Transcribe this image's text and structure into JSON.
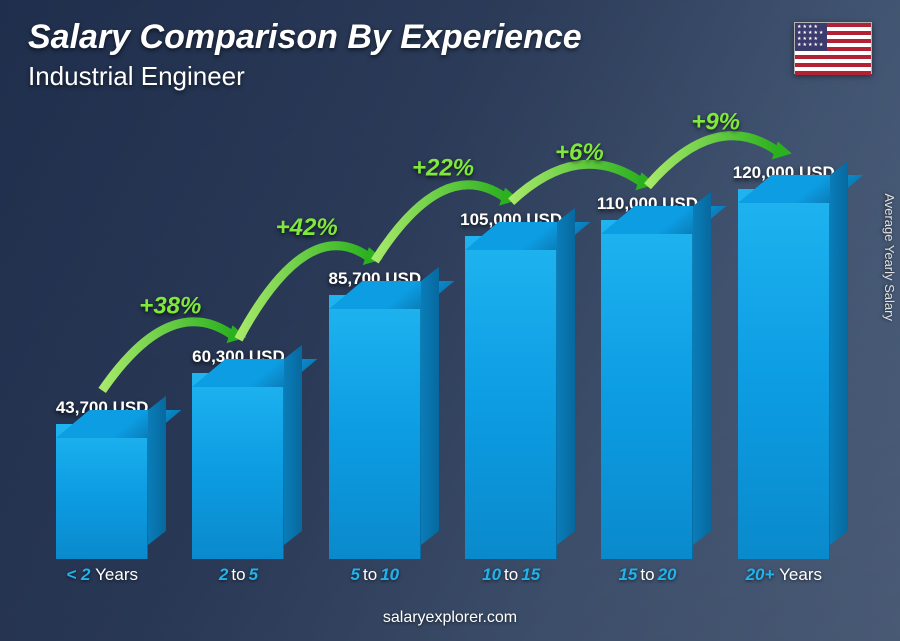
{
  "header": {
    "title": "Salary Comparison By Experience",
    "subtitle": "Industrial Engineer"
  },
  "flag": {
    "country": "United States"
  },
  "yaxis_label": "Average Yearly Salary",
  "chart": {
    "type": "bar",
    "bar_color_top": "#0d9de3",
    "bar_color_front": "#1fb4f0",
    "bar_color_side": "#07689e",
    "value_fontsize": 17,
    "max_value": 120000,
    "bars": [
      {
        "label_prefix": "< 2",
        "label_suffix": "Years",
        "value": 43700,
        "value_text": "43,700 USD"
      },
      {
        "label_prefix": "2",
        "to": "to",
        "label_suffix": "5",
        "value": 60300,
        "value_text": "60,300 USD"
      },
      {
        "label_prefix": "5",
        "to": "to",
        "label_suffix": "10",
        "value": 85700,
        "value_text": "85,700 USD"
      },
      {
        "label_prefix": "10",
        "to": "to",
        "label_suffix": "15",
        "value": 105000,
        "value_text": "105,000 USD"
      },
      {
        "label_prefix": "15",
        "to": "to",
        "label_suffix": "20",
        "value": 110000,
        "value_text": "110,000 USD"
      },
      {
        "label_prefix": "20+",
        "label_suffix": "Years",
        "value": 120000,
        "value_text": "120,000 USD"
      }
    ],
    "arc_stroke_light": "#a8e96a",
    "arc_stroke_dark": "#2bb01f",
    "arc_labels": [
      "+38%",
      "+42%",
      "+22%",
      "+6%",
      "+9%"
    ],
    "arc_label_color": "#7fe83b"
  },
  "footer": {
    "text": "salaryexplorer.com"
  },
  "colors": {
    "bg_dark": "#22365a",
    "accent_cyan": "#1fb4f0",
    "accent_green": "#7fe83b",
    "text": "#ffffff"
  }
}
